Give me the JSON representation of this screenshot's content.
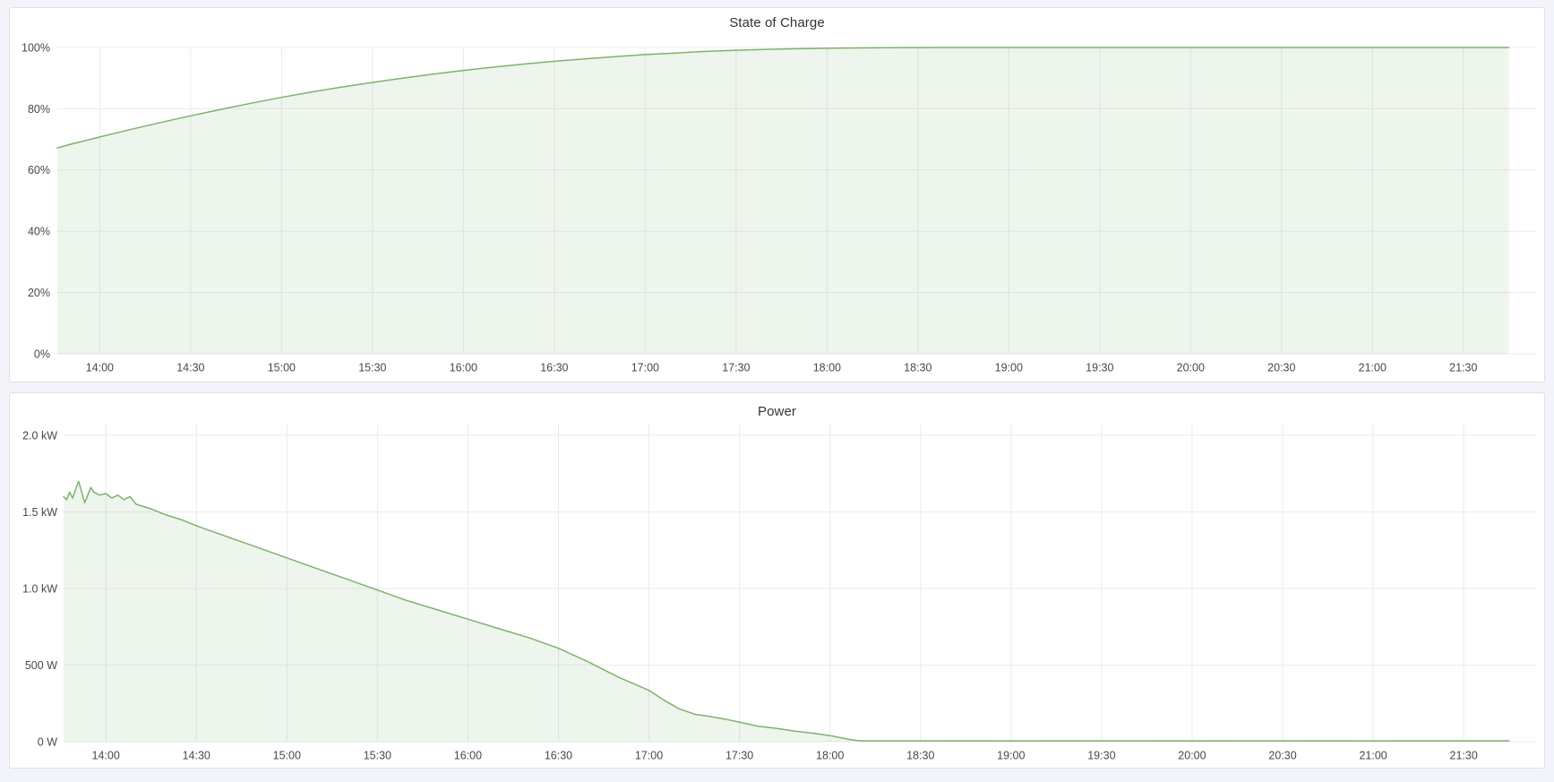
{
  "page": {
    "background": "#f2f4f9",
    "panel_background": "#ffffff",
    "accent_green": "#7eb26d"
  },
  "panels": [
    {
      "title": "State of Charge"
    },
    {
      "title": "Power"
    }
  ],
  "chart_data": [
    {
      "type": "area",
      "title": "State of Charge",
      "xlabel": "",
      "ylabel": "",
      "legend": "none",
      "grid": true,
      "ylim": [
        0,
        100
      ],
      "x_range": [
        "13:46",
        "21:54"
      ],
      "x_ticks": [
        "14:00",
        "14:30",
        "15:00",
        "15:30",
        "16:00",
        "16:30",
        "17:00",
        "17:30",
        "18:00",
        "18:30",
        "19:00",
        "19:30",
        "20:00",
        "20:30",
        "21:00",
        "21:30"
      ],
      "y_ticks": [
        {
          "value": 0,
          "label": "0%"
        },
        {
          "value": 20,
          "label": "20%"
        },
        {
          "value": 40,
          "label": "40%"
        },
        {
          "value": 60,
          "label": "60%"
        },
        {
          "value": 80,
          "label": "80%"
        },
        {
          "value": 100,
          "label": "100%"
        }
      ],
      "series": [
        {
          "name": "State of Charge",
          "unit": "%",
          "color": "#7eb26d",
          "fill": "rgba(126,178,109,0.13)",
          "points": [
            [
              "13:46",
              67.2
            ],
            [
              "13:50",
              68.3
            ],
            [
              "14:00",
              70.8
            ],
            [
              "14:10",
              73.2
            ],
            [
              "14:20",
              75.5
            ],
            [
              "14:30",
              77.7
            ],
            [
              "14:40",
              79.8
            ],
            [
              "14:50",
              81.8
            ],
            [
              "15:00",
              83.7
            ],
            [
              "15:10",
              85.5
            ],
            [
              "15:20",
              87.1
            ],
            [
              "15:30",
              88.6
            ],
            [
              "15:40",
              90.0
            ],
            [
              "15:50",
              91.3
            ],
            [
              "16:00",
              92.5
            ],
            [
              "16:10",
              93.6
            ],
            [
              "16:20",
              94.6
            ],
            [
              "16:30",
              95.5
            ],
            [
              "16:40",
              96.3
            ],
            [
              "16:50",
              97.0
            ],
            [
              "17:00",
              97.7
            ],
            [
              "17:10",
              98.2
            ],
            [
              "17:20",
              98.7
            ],
            [
              "17:30",
              99.1
            ],
            [
              "17:40",
              99.4
            ],
            [
              "17:50",
              99.6
            ],
            [
              "18:00",
              99.75
            ],
            [
              "18:10",
              99.85
            ],
            [
              "18:20",
              99.92
            ],
            [
              "18:30",
              99.97
            ],
            [
              "18:40",
              100
            ],
            [
              "19:00",
              100
            ],
            [
              "19:30",
              100
            ],
            [
              "20:00",
              100
            ],
            [
              "20:30",
              100
            ],
            [
              "21:00",
              100
            ],
            [
              "21:30",
              100
            ],
            [
              "21:45",
              100
            ]
          ]
        }
      ]
    },
    {
      "type": "area",
      "title": "Power",
      "xlabel": "",
      "ylabel": "",
      "legend": "none",
      "grid": true,
      "ylim": [
        0,
        2.0
      ],
      "x_range": [
        "13:46",
        "21:54"
      ],
      "x_ticks": [
        "14:00",
        "14:30",
        "15:00",
        "15:30",
        "16:00",
        "16:30",
        "17:00",
        "17:30",
        "18:00",
        "18:30",
        "19:00",
        "19:30",
        "20:00",
        "20:30",
        "21:00",
        "21:30"
      ],
      "y_ticks": [
        {
          "value": 0,
          "label": "0 W"
        },
        {
          "value": 0.5,
          "label": "500 W"
        },
        {
          "value": 1.0,
          "label": "1.0 kW"
        },
        {
          "value": 1.5,
          "label": "1.5 kW"
        },
        {
          "value": 2.0,
          "label": "2.0 kW"
        }
      ],
      "series": [
        {
          "name": "Power",
          "unit": "kW",
          "color": "#7eb26d",
          "fill": "rgba(126,178,109,0.13)",
          "points": [
            [
              "13:46",
              1.6
            ],
            [
              "13:47",
              1.58
            ],
            [
              "13:48",
              1.63
            ],
            [
              "13:49",
              1.59
            ],
            [
              "13:50",
              1.65
            ],
            [
              "13:51",
              1.7
            ],
            [
              "13:52",
              1.63
            ],
            [
              "13:53",
              1.56
            ],
            [
              "13:54",
              1.61
            ],
            [
              "13:55",
              1.66
            ],
            [
              "13:56",
              1.63
            ],
            [
              "13:58",
              1.61
            ],
            [
              "14:00",
              1.62
            ],
            [
              "14:02",
              1.59
            ],
            [
              "14:04",
              1.61
            ],
            [
              "14:06",
              1.58
            ],
            [
              "14:08",
              1.6
            ],
            [
              "14:10",
              1.55
            ],
            [
              "14:15",
              1.52
            ],
            [
              "14:20",
              1.48
            ],
            [
              "14:25",
              1.45
            ],
            [
              "14:30",
              1.41
            ],
            [
              "14:40",
              1.34
            ],
            [
              "14:50",
              1.27
            ],
            [
              "15:00",
              1.2
            ],
            [
              "15:10",
              1.13
            ],
            [
              "15:20",
              1.06
            ],
            [
              "15:30",
              0.99
            ],
            [
              "15:40",
              0.92
            ],
            [
              "15:50",
              0.86
            ],
            [
              "16:00",
              0.8
            ],
            [
              "16:10",
              0.74
            ],
            [
              "16:20",
              0.68
            ],
            [
              "16:30",
              0.61
            ],
            [
              "16:40",
              0.52
            ],
            [
              "16:50",
              0.42
            ],
            [
              "17:00",
              0.335
            ],
            [
              "17:05",
              0.27
            ],
            [
              "17:10",
              0.215
            ],
            [
              "17:15",
              0.18
            ],
            [
              "17:20",
              0.165
            ],
            [
              "17:25",
              0.148
            ],
            [
              "17:30",
              0.128
            ],
            [
              "17:36",
              0.102
            ],
            [
              "17:42",
              0.088
            ],
            [
              "17:48",
              0.07
            ],
            [
              "17:54",
              0.056
            ],
            [
              "18:00",
              0.04
            ],
            [
              "18:04",
              0.024
            ],
            [
              "18:07",
              0.012
            ],
            [
              "18:10",
              0.006
            ],
            [
              "18:30",
              0.006
            ],
            [
              "19:00",
              0.005
            ],
            [
              "19:30",
              0.006
            ],
            [
              "20:00",
              0.005
            ],
            [
              "20:30",
              0.006
            ],
            [
              "21:00",
              0.005
            ],
            [
              "21:30",
              0.006
            ],
            [
              "21:45",
              0.006
            ]
          ]
        }
      ]
    }
  ]
}
